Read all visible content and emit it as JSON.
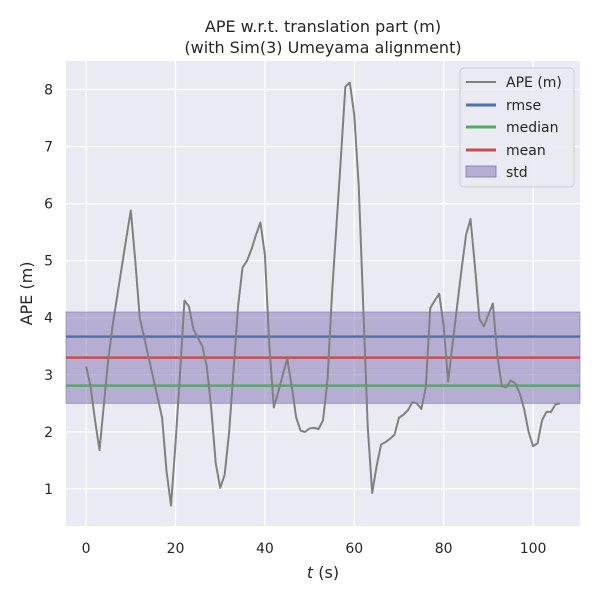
{
  "chart_data": {
    "type": "line",
    "title": "APE w.r.t. translation part (m)",
    "subtitle": "(with Sim(3) Umeyama alignment)",
    "xlabel_var": "t",
    "xlabel_unit": " (s)",
    "ylabel": "APE (m)",
    "xlim": [
      -4.5,
      110.5
    ],
    "ylim": [
      0.35,
      8.5
    ],
    "xticks": [
      0,
      20,
      40,
      60,
      80,
      100
    ],
    "yticks": [
      1,
      2,
      3,
      4,
      5,
      6,
      7,
      8
    ],
    "grid": true,
    "legend_position": "top-right",
    "legend": [
      "APE (m)",
      "rmse",
      "median",
      "mean",
      "std"
    ],
    "colors": {
      "background": "#EAEAF2",
      "grid": "#FFFFFF",
      "ape": "#808080",
      "rmse": "#4C72B0",
      "median": "#55A868",
      "mean": "#C44E52",
      "std": "#8172B2"
    },
    "series": [
      {
        "name": "APE (m)",
        "x": [
          0,
          1,
          2,
          3,
          4,
          5,
          6,
          7,
          8,
          9,
          10,
          11,
          12,
          13,
          14,
          15,
          16,
          17,
          18,
          19,
          20,
          21,
          22,
          23,
          24,
          25,
          26,
          27,
          28,
          29,
          30,
          31,
          32,
          33,
          34,
          35,
          36,
          37,
          38,
          39,
          40,
          41,
          42,
          43,
          44,
          45,
          46,
          47,
          48,
          49,
          50,
          51,
          52,
          53,
          54,
          55,
          56,
          57,
          58,
          59,
          60,
          61,
          62,
          63,
          64,
          65,
          66,
          67,
          68,
          69,
          70,
          71,
          72,
          73,
          74,
          75,
          76,
          77,
          78,
          79,
          80,
          81,
          82,
          83,
          84,
          85,
          86,
          87,
          88,
          89,
          90,
          91,
          92,
          93,
          94,
          95,
          96,
          97,
          98,
          99,
          100,
          101,
          102,
          103,
          104,
          105,
          106
        ],
        "values": [
          3.15,
          2.8,
          2.2,
          1.68,
          2.5,
          3.3,
          3.9,
          4.4,
          4.9,
          5.4,
          5.88,
          5.0,
          4.0,
          3.65,
          3.3,
          2.95,
          2.6,
          2.25,
          1.3,
          0.71,
          1.8,
          3.0,
          4.3,
          4.2,
          3.8,
          3.65,
          3.5,
          3.15,
          2.4,
          1.45,
          1.02,
          1.25,
          2.0,
          3.1,
          4.2,
          4.88,
          5.0,
          5.2,
          5.45,
          5.67,
          5.1,
          3.5,
          2.43,
          2.7,
          3.0,
          3.28,
          2.8,
          2.25,
          2.02,
          2.0,
          2.06,
          2.07,
          2.05,
          2.2,
          2.9,
          4.4,
          5.6,
          6.8,
          8.05,
          8.12,
          7.55,
          6.3,
          4.2,
          2.1,
          0.93,
          1.4,
          1.78,
          1.82,
          1.88,
          1.95,
          2.25,
          2.3,
          2.38,
          2.52,
          2.5,
          2.4,
          2.78,
          4.17,
          4.3,
          4.42,
          3.85,
          2.88,
          3.55,
          4.2,
          4.85,
          5.45,
          5.73,
          4.9,
          3.98,
          3.85,
          4.05,
          4.25,
          3.35,
          2.8,
          2.78,
          2.9,
          2.85,
          2.68,
          2.4,
          2.0,
          1.75,
          1.8,
          2.2,
          2.35,
          2.35,
          2.48,
          2.5
        ]
      }
    ],
    "stats": {
      "rmse": 3.67,
      "median": 2.81,
      "mean": 3.3,
      "std_lower": 2.5,
      "std_upper": 4.1
    }
  }
}
